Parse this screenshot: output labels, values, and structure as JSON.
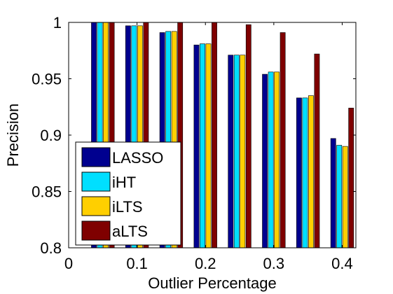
{
  "chart_data": {
    "type": "bar",
    "title": "",
    "xlabel": "Outlier Percentage",
    "ylabel": "Precision",
    "xlim": [
      0,
      0.42
    ],
    "ylim": [
      0.8,
      1.0
    ],
    "x_ticks": [
      "0",
      "0.1",
      "0.2",
      "0.3",
      "0.4"
    ],
    "x_tick_values": [
      0,
      0.1,
      0.2,
      0.3,
      0.4
    ],
    "y_ticks": [
      "0.8",
      "0.85",
      "0.9",
      "0.95",
      "1"
    ],
    "y_tick_values": [
      0.8,
      0.85,
      0.9,
      0.95,
      1.0
    ],
    "grid": false,
    "legend_position": "bottom-left",
    "x": [
      0.05,
      0.1,
      0.15,
      0.2,
      0.25,
      0.3,
      0.35,
      0.4
    ],
    "series": [
      {
        "name": "LASSO",
        "color": "#00008f",
        "values": [
          1.0,
          0.997,
          0.991,
          0.98,
          0.971,
          0.954,
          0.933,
          0.897
        ]
      },
      {
        "name": "iHT",
        "color": "#00dfff",
        "values": [
          1.0,
          0.997,
          0.992,
          0.981,
          0.971,
          0.956,
          0.933,
          0.891
        ]
      },
      {
        "name": "iLTS",
        "color": "#ffcf00",
        "values": [
          1.0,
          0.997,
          0.992,
          0.981,
          0.971,
          0.956,
          0.935,
          0.89
        ]
      },
      {
        "name": "aLTS",
        "color": "#7f0000",
        "values": [
          1.0,
          1.0,
          1.0,
          1.0,
          0.998,
          0.991,
          0.972,
          0.924
        ]
      }
    ]
  }
}
